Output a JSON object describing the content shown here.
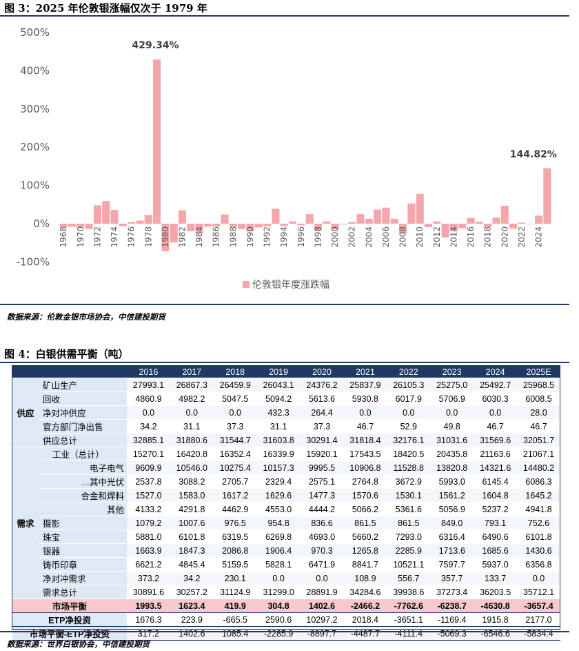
{
  "figure3": {
    "title": "图 3：2025 年伦敦银涨幅仅次于 1979 年",
    "source": "数据来源：伦敦金银市场协会，中信建投期货"
  },
  "chart_data": {
    "type": "bar",
    "series_name": "伦敦银年度涨跌幅",
    "color": "#f4a6ab",
    "ylim": [
      -100,
      500
    ],
    "yticks": [
      "-100%",
      "0%",
      "100%",
      "200%",
      "300%",
      "400%",
      "500%"
    ],
    "ytick_values": [
      -100,
      0,
      100,
      200,
      300,
      400,
      500
    ],
    "years": [
      1968,
      1969,
      1970,
      1971,
      1972,
      1973,
      1974,
      1975,
      1976,
      1977,
      1978,
      1979,
      1980,
      1981,
      1982,
      1983,
      1984,
      1985,
      1986,
      1987,
      1988,
      1989,
      1990,
      1991,
      1992,
      1993,
      1994,
      1995,
      1996,
      1997,
      1998,
      1999,
      2000,
      2001,
      2002,
      2003,
      2004,
      2005,
      2006,
      2007,
      2008,
      2009,
      2010,
      2011,
      2012,
      2013,
      2014,
      2015,
      2016,
      2017,
      2018,
      2019,
      2020,
      2021,
      2022,
      2023,
      2024,
      2025
    ],
    "values": [
      -9,
      -8,
      -10,
      -14,
      48,
      59,
      36,
      -7,
      4,
      8,
      23,
      429.34,
      -72,
      -49,
      35,
      -20,
      -25,
      -8,
      -7,
      24,
      -9,
      -14,
      -20,
      -10,
      -7,
      39,
      -6,
      6,
      -4,
      25,
      -17,
      6,
      -15,
      -2,
      4,
      25,
      13,
      37,
      42,
      13,
      -26,
      53,
      78,
      -9,
      6,
      -36,
      -20,
      -12,
      15,
      5,
      -9,
      16,
      47,
      -13,
      3,
      -1,
      21,
      144.82
    ],
    "xtick_labels": [
      "1968",
      "1970",
      "1972",
      "1974",
      "1976",
      "1978",
      "1980",
      "1982",
      "1984",
      "1986",
      "1988",
      "1990",
      "1992",
      "1994",
      "1996",
      "1998",
      "2000",
      "2002",
      "2004",
      "2006",
      "2008",
      "2010",
      "2012",
      "2014",
      "2016",
      "2018",
      "2020",
      "2022",
      "2024"
    ],
    "annotations": [
      {
        "year": 1979,
        "text": "429.34%"
      },
      {
        "year": 2025,
        "text": "144.82%"
      }
    ],
    "legend": "伦敦银年度涨跌幅",
    "legend_position": "bottom-center"
  },
  "figure4": {
    "title": "图 4：白银供需平衡（吨）",
    "source": "数据来源：世界白银协会，中信建投期货",
    "header": [
      "",
      "",
      "2016",
      "2017",
      "2018",
      "2019",
      "2020",
      "2021",
      "2022",
      "2023",
      "2024",
      "2025E"
    ],
    "supply_group": "供应",
    "demand_group": "需求",
    "supply_rows": [
      {
        "label": "矿山生产",
        "values": [
          "27993.1",
          "26867.3",
          "26459.9",
          "26043.1",
          "24376.2",
          "25837.9",
          "26105.3",
          "25275.0",
          "25492.7",
          "25968.5"
        ]
      },
      {
        "label": "回收",
        "values": [
          "4860.9",
          "4982.2",
          "5047.5",
          "5094.2",
          "5613.6",
          "5930.8",
          "6017.9",
          "5706.9",
          "6030.3",
          "6008.5"
        ]
      },
      {
        "label": "净对冲供应",
        "values": [
          "0.0",
          "0.0",
          "0.0",
          "432.3",
          "264.4",
          "0.0",
          "0.0",
          "0.0",
          "0.0",
          "28.0"
        ]
      },
      {
        "label": "官方部门净出售",
        "values": [
          "34.2",
          "31.1",
          "37.3",
          "31.1",
          "37.3",
          "46.7",
          "52.9",
          "49.8",
          "46.7",
          "46.7"
        ]
      },
      {
        "label": "供应总计",
        "values": [
          "32885.1",
          "31880.6",
          "31544.7",
          "31603.8",
          "30291.4",
          "31818.4",
          "32176.1",
          "31031.6",
          "31569.6",
          "32051.7"
        ]
      }
    ],
    "demand_rows": [
      {
        "label": "工业（总计）",
        "values": [
          "15270.1",
          "16420.8",
          "16352.4",
          "16339.9",
          "15920.1",
          "17543.5",
          "18420.5",
          "20435.8",
          "21163.6",
          "21067.1"
        ]
      },
      {
        "label": "电子电气",
        "values": [
          "9609.9",
          "10546.0",
          "10275.4",
          "10157.3",
          "9995.5",
          "10906.8",
          "11528.8",
          "13820.8",
          "14321.6",
          "14480.2"
        ]
      },
      {
        "label": "…其中光伏",
        "values": [
          "2537.8",
          "3088.2",
          "2705.7",
          "2329.4",
          "2575.1",
          "2764.8",
          "3672.9",
          "5993.0",
          "6145.4",
          "6086.3"
        ]
      },
      {
        "label": "合金和焊料",
        "values": [
          "1527.0",
          "1583.0",
          "1617.2",
          "1629.6",
          "1477.3",
          "1570.6",
          "1530.1",
          "1561.2",
          "1604.8",
          "1645.2"
        ]
      },
      {
        "label": "其他",
        "values": [
          "4133.2",
          "4291.8",
          "4462.9",
          "4553.0",
          "4444.2",
          "5066.2",
          "5361.6",
          "5056.9",
          "5237.2",
          "4941.8"
        ]
      },
      {
        "label": "摄影",
        "values": [
          "1079.2",
          "1007.6",
          "976.5",
          "954.8",
          "836.6",
          "861.5",
          "861.5",
          "849.0",
          "793.1",
          "752.6"
        ]
      },
      {
        "label": "珠宝",
        "values": [
          "5881.0",
          "6101.8",
          "6319.5",
          "6269.8",
          "4693.0",
          "5660.2",
          "7293.0",
          "6316.4",
          "6490.6",
          "6101.8"
        ]
      },
      {
        "label": "银器",
        "values": [
          "1663.9",
          "1847.3",
          "2086.8",
          "1906.4",
          "970.3",
          "1265.8",
          "2285.9",
          "1713.6",
          "1685.6",
          "1430.6"
        ]
      },
      {
        "label": "铸币印章",
        "values": [
          "6621.2",
          "4845.4",
          "5159.5",
          "5828.1",
          "6471.9",
          "8841.7",
          "10521.1",
          "7597.7",
          "5937.0",
          "6356.8"
        ]
      },
      {
        "label": "净对冲需求",
        "values": [
          "373.2",
          "34.2",
          "230.1",
          "0.0",
          "0.0",
          "108.9",
          "556.7",
          "357.7",
          "133.7",
          "0.0"
        ]
      },
      {
        "label": "需求总计",
        "values": [
          "30891.6",
          "30257.2",
          "31124.9",
          "31299.0",
          "28891.9",
          "34284.6",
          "39938.6",
          "37273.4",
          "36203.5",
          "35712.1"
        ]
      }
    ],
    "balance_rows": [
      {
        "label": "市场平衡",
        "values": [
          "1993.5",
          "1623.4",
          "419.9",
          "304.8",
          "1402.6",
          "-2466.2",
          "-7762.6",
          "-6238.7",
          "-4630.8",
          "-3657.4"
        ]
      },
      {
        "label": "ETP净投资",
        "values": [
          "1676.3",
          "223.9",
          "-665.5",
          "2590.6",
          "10297.2",
          "2018.4",
          "-3651.1",
          "-1169.4",
          "1915.8",
          "2177.0"
        ]
      },
      {
        "label": "市场平衡-ETP净投资",
        "values": [
          "317.2",
          "1402.6",
          "1085.4",
          "-2285.9",
          "-8897.7",
          "-4487.7",
          "-4111.4",
          "-5069.3",
          "-6546.6",
          "-5834.4"
        ]
      }
    ]
  }
}
